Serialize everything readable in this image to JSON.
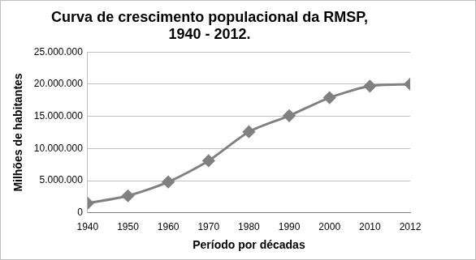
{
  "chart_data": {
    "type": "line",
    "title": [
      "Curva de crescimento populacional da RMSP,",
      "1940 - 2012."
    ],
    "x_label": "Período por décadas",
    "y_label": "Milhões de habitantes",
    "categories": [
      "1940",
      "1950",
      "1960",
      "1970",
      "1980",
      "1990",
      "2000",
      "2010",
      "2012"
    ],
    "values": [
      1500000,
      2650000,
      4800000,
      8100000,
      12600000,
      15100000,
      17900000,
      19700000,
      20000000
    ],
    "color": "#808080",
    "marker": "diamond",
    "line_style": "solid",
    "ylim": [
      0,
      25000000
    ],
    "yticks": [
      0,
      {
        "value": 5000000,
        "label": "5.000.000"
      },
      {
        "value": 10000000,
        "label": "10.000.000"
      },
      {
        "value": 15000000,
        "label": "15.000.000"
      },
      {
        "value": 20000000,
        "label": "20.000.000"
      },
      {
        "value": 25000000,
        "label": "25.000.000"
      }
    ],
    "grid": true
  }
}
